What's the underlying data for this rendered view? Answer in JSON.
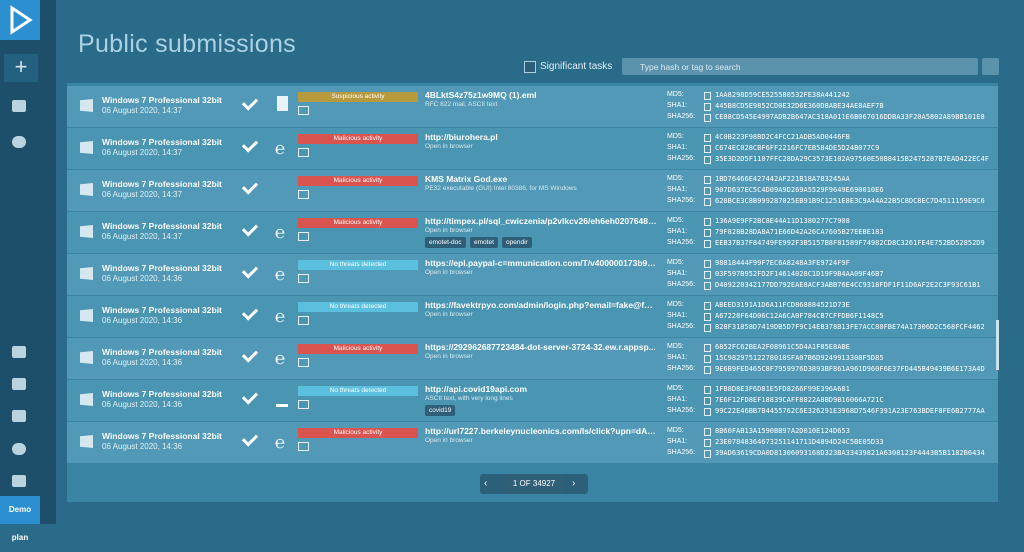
{
  "header": {
    "title": "Public submissions",
    "significant_label": "Significant tasks",
    "search_placeholder": "Type hash or tag to search"
  },
  "sidebar": {
    "plan": "Demo plan"
  },
  "hash_labels": [
    "MD5:",
    "SHA1:",
    "SHA256:"
  ],
  "rows": [
    {
      "os": "Windows 7 Professional 32bit",
      "date": "06 August 2020, 14:37",
      "verdict": "Suspicious activity",
      "color": "#b79a3c",
      "name": "4BLktS4z75z1w9MQ (1).eml",
      "subtitle": "RFC 822 mail, ASCII text",
      "tags": [],
      "md5": "1AA8298D59CE525580532FE38A441242",
      "sha1": "445B8CD5E9852CD0E32D6E360D8ABE34AE8AEF7B",
      "sha256": "CE88CD545E4997ADB2B647AC318A011E6B067016DDBA33F20A5802A89BB101E8"
    },
    {
      "os": "Windows 7 Professional 32bit",
      "date": "06 August 2020, 14:37",
      "verdict": "Malicious activity",
      "color": "#d9534f",
      "name": "http://biurohera.pl",
      "subtitle": "Open in browser",
      "tags": [],
      "md5": "4C0B223F98BD2C4FCC21ADB5AD0446FB",
      "sha1": "C674EC028CBF6FF2216FC7EB584DE5D24B077C9",
      "sha256": "35E3D2D5F1107FFC28DA29C3573E102A97560E50B8415B2475287B7EAD422EC4F"
    },
    {
      "os": "Windows 7 Professional 32bit",
      "date": "06 August 2020, 14:37",
      "verdict": "Malicious activity",
      "color": "#d9534f",
      "name": "KMS Matrix God.exe",
      "subtitle": "PE32 executable (GUI) Intel 80386, for MS Windows",
      "tags": [],
      "md5": "1BD76466E427442AF221B18A783245AA",
      "sha1": "907D637EC5C4D09A9D269A5529F9649E690010E6",
      "sha256": "628BCE3C8B999287025EB91B9C1251E8E3C9A44A22B5C8DC8EC7D4511159E9C6"
    },
    {
      "os": "Windows 7 Professional 32bit",
      "date": "06 August 2020, 14:37",
      "verdict": "Malicious activity",
      "color": "#d9534f",
      "name": "http://timpex.pl/sql_cwiczenia/p2vlkcv26/eh6eh02076484...",
      "subtitle": "Open in browser",
      "tags": [
        "emotet-doc",
        "emotet",
        "opendir"
      ],
      "md5": "136A9E9FF2BC8E44A11D1380277C7908",
      "sha1": "79F828B28DA8A71E66D42A26CA7605B27EEBE183",
      "sha256": "EEB37B37F84749FE992F3B5157B8F81589F74982CD8C3261FE4E752BD52852D9"
    },
    {
      "os": "Windows 7 Professional 32bit",
      "date": "06 August 2020, 14:36",
      "verdict": "No threats detected",
      "color": "#5bc0de",
      "name": "https://epl.paypal-c=mmunication.com/T/v400000173b9c...",
      "subtitle": "Open in browser",
      "tags": [],
      "md5": "98818444F99F7EC6A8248A3FE9724F9F",
      "sha1": "03F597B952FD2F14614028C1D19F9B4AA09F46B7",
      "sha256": "D409220342177DD792EAE8ACF3ABB76E4CC9318FDF1F11D6AF2E2C3F93C61B1"
    },
    {
      "os": "Windows 7 Professional 32bit",
      "date": "06 August 2020, 14:36",
      "verdict": "No threats detected",
      "color": "#5bc0de",
      "name": "https://favektrpyo.com/admin/login.php?email=fake@fake...",
      "subtitle": "Open in browser",
      "tags": [],
      "md5": "ABEED3191A1D6A11FCD868884521D73E",
      "sha1": "A67228F64D06C12A6CA0F784CB7CFFDB6F1148C5",
      "sha256": "828F31858D7419DB5D7F9C14EB378B13FE7ACC80FBE74A17306D2C568FCF4462"
    },
    {
      "os": "Windows 7 Professional 32bit",
      "date": "06 August 2020, 14:36",
      "verdict": "Malicious activity",
      "color": "#d9534f",
      "name": "https://292962687723484-dot-server-3724-32.ew.r.appsp...",
      "subtitle": "Open in browser",
      "tags": [],
      "md5": "6852FC62BEA2F08961C5D4A1F85E8ABE",
      "sha1": "15C98297512278010SFA07B6D9249913308F5D85",
      "sha256": "9E6B9FED465C8F7959976D3893BF861A961D960F6E37FD445B49439B6E173A4D"
    },
    {
      "os": "Windows 7 Professional 32bit",
      "date": "06 August 2020, 14:36",
      "verdict": "No threats detected",
      "color": "#5bc0de",
      "name": "http://api.covid19api.com",
      "subtitle": "ASCII text, with very long lines",
      "tags": [
        "covid19"
      ],
      "md5": "1FB8D8E3F6D81E5FD8266F99E396A681",
      "sha1": "7E6F12FD8EF18839CAFF8822A8BD9B16066A721C",
      "sha256": "99C22E46BB7B4455762C6E326291E3968D7546F391A23E763BDEF8FE6B2777AA"
    },
    {
      "os": "Windows 7 Professional 32bit",
      "date": "06 August 2020, 14:36",
      "verdict": "Malicious activity",
      "color": "#d9534f",
      "name": "http://url7227.berkeleynucleonics.com/ls/click?upn=dAn-2...",
      "subtitle": "Open in browser",
      "tags": [],
      "md5": "8B60FAB13A1590BB97A2D010E124D653",
      "sha1": "23E07848364673251141711D4894D24C5BE05D33",
      "sha256": "39AD63619CDA0D81306093168D323BA33439821A6308123F4443B5B1182B6434"
    }
  ],
  "pagination": {
    "page": "1 OF 34927"
  }
}
